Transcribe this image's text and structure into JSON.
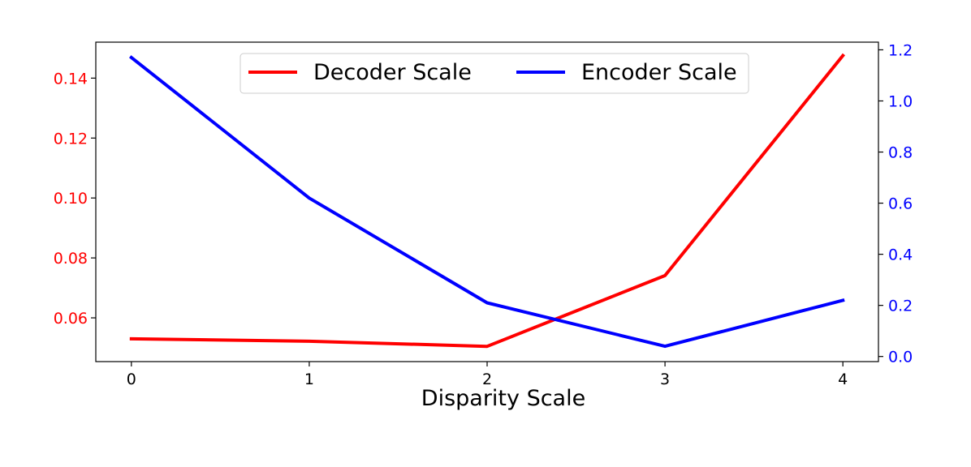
{
  "chart_data": {
    "type": "line",
    "title": "",
    "xlabel": "Disparity Scale",
    "x": [
      0,
      1,
      2,
      3,
      4
    ],
    "xticks": [
      "0",
      "1",
      "2",
      "3",
      "4"
    ],
    "xlim": [
      -0.2,
      4.2
    ],
    "axes": {
      "left": {
        "ylim": [
          0.0454,
          0.152
        ],
        "ticks": [
          "0.06",
          "0.08",
          "0.10",
          "0.12",
          "0.14"
        ],
        "tick_values": [
          0.06,
          0.08,
          0.1,
          0.12,
          0.14
        ],
        "tick_color": "#ff0000"
      },
      "right": {
        "ylim": [
          -0.02,
          1.23
        ],
        "ticks": [
          "0.0",
          "0.2",
          "0.4",
          "0.6",
          "0.8",
          "1.0",
          "1.2"
        ],
        "tick_values": [
          0.0,
          0.2,
          0.4,
          0.6,
          0.8,
          1.0,
          1.2
        ],
        "tick_color": "#0000ff"
      }
    },
    "series": [
      {
        "name": "Decoder Scale",
        "axis": "left",
        "color": "#ff0000",
        "values": [
          0.053,
          0.0522,
          0.0505,
          0.0741,
          0.1475
        ]
      },
      {
        "name": "Encoder Scale",
        "axis": "right",
        "color": "#0000ff",
        "values": [
          1.17,
          0.62,
          0.21,
          0.04,
          0.22
        ]
      }
    ],
    "legend": {
      "placement": "top-center",
      "columns": 2
    },
    "grid": false
  }
}
